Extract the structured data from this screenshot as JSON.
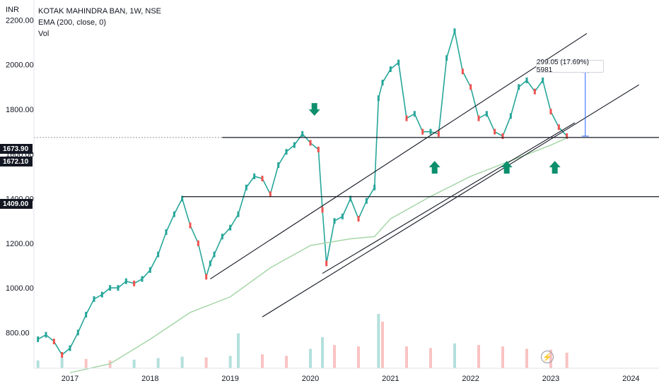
{
  "header": {
    "symbol_line": "KOTAK MAHINDRA BAN, 1W, NSE",
    "indicator_line": "EMA (200, close, 0)",
    "volume_line": "Vol",
    "currency": "INR"
  },
  "measurement": {
    "label": "299.05 (17.69%) 5981"
  },
  "price_tags": [
    {
      "label": "1673.90",
      "value": 1673.9
    },
    {
      "label": "1672.10",
      "value": 1672.1
    },
    {
      "label": "1409.00",
      "value": 1409.0
    }
  ],
  "colors": {
    "up": "#26a69a",
    "down": "#ef5350",
    "ema": "#a5d6a7",
    "arrows": "#0b8f6c",
    "lines": "#131722",
    "measure": "#2962ff"
  },
  "chart_data": {
    "type": "line",
    "xlim": [
      2016.55,
      2024.35
    ],
    "ylim": [
      640,
      2290
    ],
    "y_ticks": [
      "800.00",
      "1000.00",
      "1200.00",
      "1400.00",
      "1600.00",
      "1800.00",
      "2000.00",
      "2200.00"
    ],
    "y_tick_values": [
      800,
      1000,
      1200,
      1400,
      1600,
      1800,
      2000,
      2200
    ],
    "x_ticks": [
      "2017",
      "2018",
      "2019",
      "2020",
      "2021",
      "2022",
      "2023",
      "2024"
    ],
    "x_tick_values": [
      2017,
      2018,
      2019,
      2020,
      2021,
      2022,
      2023,
      2024
    ],
    "series": [
      {
        "name": "KOTAK MAHINDRA BAN",
        "x": [
          2016.6,
          2016.7,
          2016.8,
          2016.9,
          2017.0,
          2017.1,
          2017.2,
          2017.3,
          2017.4,
          2017.5,
          2017.6,
          2017.7,
          2017.8,
          2017.9,
          2018.0,
          2018.1,
          2018.2,
          2018.3,
          2018.4,
          2018.5,
          2018.6,
          2018.7,
          2018.75,
          2018.8,
          2018.9,
          2019.0,
          2019.1,
          2019.2,
          2019.3,
          2019.4,
          2019.5,
          2019.6,
          2019.7,
          2019.8,
          2019.9,
          2020.0,
          2020.1,
          2020.15,
          2020.2,
          2020.3,
          2020.4,
          2020.5,
          2020.6,
          2020.7,
          2020.8,
          2020.85,
          2020.9,
          2021.0,
          2021.1,
          2021.2,
          2021.3,
          2021.4,
          2021.5,
          2021.6,
          2021.7,
          2021.8,
          2021.9,
          2022.0,
          2022.1,
          2022.2,
          2022.3,
          2022.4,
          2022.5,
          2022.6,
          2022.7,
          2022.8,
          2022.9,
          2023.0,
          2023.1,
          2023.2
        ],
        "values": [
          770,
          790,
          760,
          700,
          730,
          800,
          880,
          950,
          970,
          1000,
          1000,
          1030,
          1020,
          1040,
          1080,
          1150,
          1250,
          1330,
          1400,
          1280,
          1200,
          1050,
          1110,
          1150,
          1230,
          1270,
          1330,
          1450,
          1500,
          1490,
          1420,
          1550,
          1610,
          1640,
          1690,
          1650,
          1620,
          1350,
          1110,
          1300,
          1320,
          1400,
          1310,
          1390,
          1450,
          1850,
          1920,
          1980,
          2010,
          1760,
          1780,
          1700,
          1700,
          1690,
          2030,
          2150,
          1970,
          1900,
          1760,
          1780,
          1700,
          1680,
          1770,
          1900,
          1930,
          1880,
          1930,
          1790,
          1720,
          1680
        ]
      },
      {
        "name": "EMA (200, close, 0)",
        "x": [
          2017.0,
          2017.5,
          2018.0,
          2018.5,
          2019.0,
          2019.5,
          2020.0,
          2020.5,
          2020.8,
          2021.0,
          2021.5,
          2022.0,
          2022.5,
          2023.0,
          2023.2
        ],
        "values": [
          620,
          660,
          770,
          890,
          960,
          1090,
          1190,
          1220,
          1230,
          1310,
          1410,
          1500,
          1570,
          1640,
          1672
        ]
      }
    ],
    "horizontal_levels": [
      1673.9,
      1409.0
    ],
    "channel_lines": [
      {
        "x": [
          2018.75,
          2023.45
        ],
        "y": [
          1040,
          2140
        ]
      },
      {
        "x": [
          2019.4,
          2024.1
        ],
        "y": [
          870,
          1910
        ]
      },
      {
        "x": [
          2020.15,
          2023.3
        ],
        "y": [
          1065,
          1740
        ]
      }
    ],
    "measurement": {
      "x": 2023.43,
      "y": [
        1680,
        1979
      ]
    },
    "arrows": [
      {
        "direction": "down",
        "x": 2020.05,
        "y": 1790
      },
      {
        "direction": "up",
        "x": 2021.55,
        "y": 1550
      },
      {
        "direction": "up",
        "x": 2022.45,
        "y": 1550
      },
      {
        "direction": "up",
        "x": 2023.05,
        "y": 1550
      }
    ],
    "volume": {
      "x": [
        2016.6,
        2016.9,
        2017.2,
        2017.5,
        2017.8,
        2018.1,
        2018.4,
        2018.7,
        2019.0,
        2019.1,
        2019.4,
        2019.7,
        2020.0,
        2020.15,
        2020.3,
        2020.6,
        2020.85,
        2020.9,
        2021.2,
        2021.5,
        2021.8,
        2022.1,
        2022.4,
        2022.7,
        2023.0,
        2023.2
      ],
      "values": [
        10,
        14,
        12,
        10,
        11,
        13,
        15,
        14,
        16,
        45,
        18,
        16,
        25,
        40,
        30,
        28,
        70,
        60,
        28,
        26,
        32,
        30,
        28,
        25,
        24,
        20
      ]
    },
    "grid": false,
    "legend": "top-left"
  }
}
